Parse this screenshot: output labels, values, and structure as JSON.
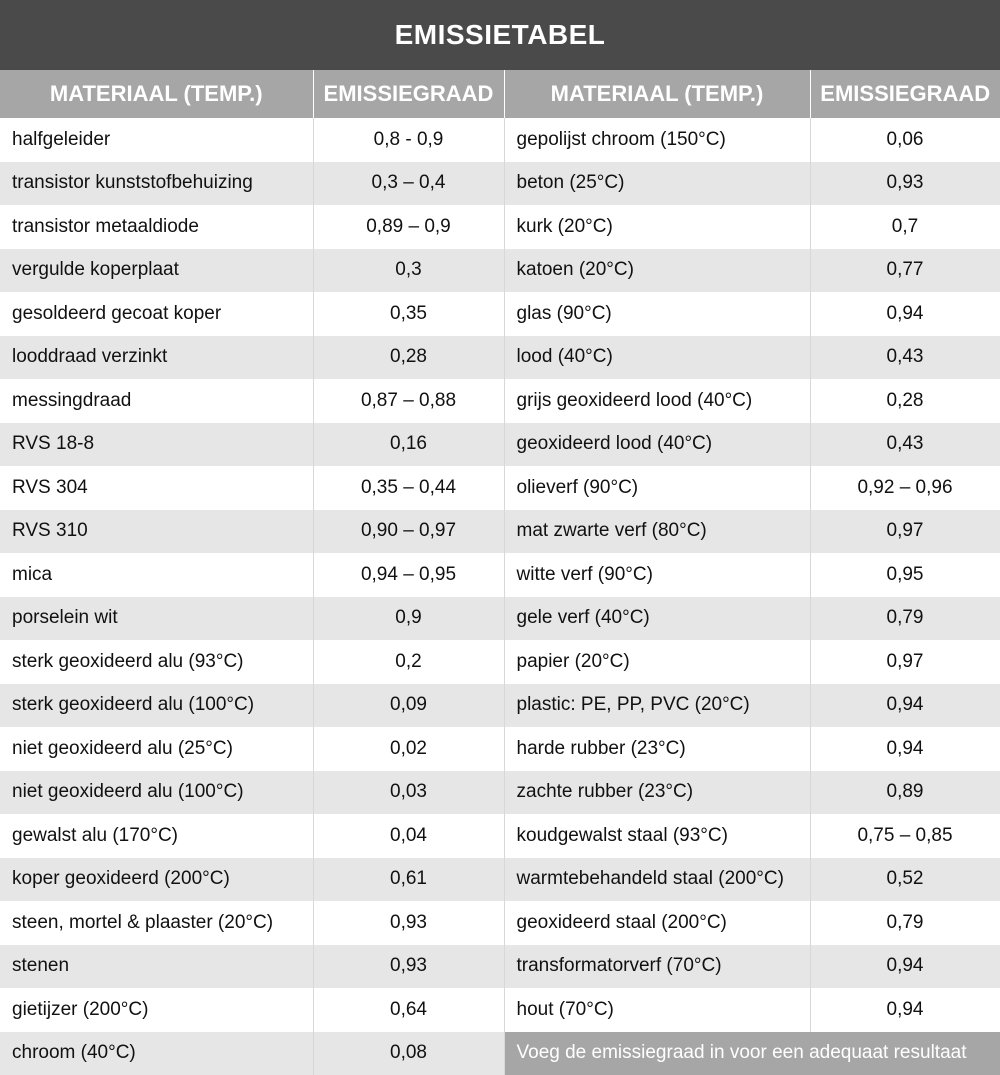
{
  "title": "EMISSIETABEL",
  "headers": [
    "MATERIAAL (TEMP.)",
    "EMISSIEGRAAD",
    "MATERIAAL (TEMP.)",
    "EMISSIEGRAAD"
  ],
  "rows": [
    {
      "m1": "halfgeleider",
      "e1": "0,8 - 0,9",
      "m2": "gepolijst chroom (150°C)",
      "e2": "0,06"
    },
    {
      "m1": "transistor kunststofbehuizing",
      "e1": "0,3 – 0,4",
      "m2": "beton (25°C)",
      "e2": "0,93"
    },
    {
      "m1": "transistor metaaldiode",
      "e1": "0,89 – 0,9",
      "m2": "kurk (20°C)",
      "e2": "0,7"
    },
    {
      "m1": "vergulde koperplaat",
      "e1": "0,3",
      "m2": "katoen (20°C)",
      "e2": "0,77"
    },
    {
      "m1": "gesoldeerd gecoat koper",
      "e1": "0,35",
      "m2": "glas (90°C)",
      "e2": "0,94"
    },
    {
      "m1": "looddraad verzinkt",
      "e1": "0,28",
      "m2": "lood (40°C)",
      "e2": "0,43"
    },
    {
      "m1": "messingdraad",
      "e1": "0,87 – 0,88",
      "m2": "grijs geoxideerd lood (40°C)",
      "e2": "0,28"
    },
    {
      "m1": "RVS 18-8",
      "e1": "0,16",
      "m2": "geoxideerd lood (40°C)",
      "e2": "0,43"
    },
    {
      "m1": "RVS 304",
      "e1": "0,35 – 0,44",
      "m2": "olieverf (90°C)",
      "e2": "0,92 – 0,96"
    },
    {
      "m1": "RVS 310",
      "e1": "0,90 – 0,97",
      "m2": "mat zwarte verf (80°C)",
      "e2": "0,97"
    },
    {
      "m1": "mica",
      "e1": "0,94 – 0,95",
      "m2": "witte verf (90°C)",
      "e2": "0,95"
    },
    {
      "m1": "porselein wit",
      "e1": "0,9",
      "m2": "gele verf (40°C)",
      "e2": "0,79"
    },
    {
      "m1": "sterk geoxideerd alu (93°C)",
      "e1": "0,2",
      "m2": "papier (20°C)",
      "e2": "0,97"
    },
    {
      "m1": "sterk geoxideerd alu (100°C)",
      "e1": "0,09",
      "m2": "plastic: PE, PP, PVC (20°C)",
      "e2": "0,94"
    },
    {
      "m1": "niet geoxideerd alu (25°C)",
      "e1": "0,02",
      "m2": "harde rubber (23°C)",
      "e2": "0,94"
    },
    {
      "m1": "niet geoxideerd alu (100°C)",
      "e1": "0,03",
      "m2": "zachte rubber (23°C)",
      "e2": "0,89"
    },
    {
      "m1": "gewalst alu (170°C)",
      "e1": "0,04",
      "m2": "koudgewalst staal (93°C)",
      "e2": "0,75 – 0,85"
    },
    {
      "m1": "koper geoxideerd (200°C)",
      "e1": "0,61",
      "m2": "warmtebehandeld staal (200°C)",
      "e2": "0,52"
    },
    {
      "m1": "steen, mortel & plaaster (20°C)",
      "e1": "0,93",
      "m2": "geoxideerd staal (200°C)",
      "e2": "0,79"
    },
    {
      "m1": "stenen",
      "e1": "0,93",
      "m2": "transformatorverf (70°C)",
      "e2": "0,94"
    },
    {
      "m1": "gietijzer (200°C)",
      "e1": "0,64",
      "m2": "hout (70°C)",
      "e2": "0,94"
    }
  ],
  "last_row": {
    "m1": "chroom (40°C)",
    "e1": "0,08"
  },
  "note": "Voeg de emissiegraad in voor een adequaat resultaat",
  "colors": {
    "title_bg": "#4a4a4a",
    "header_bg": "#a6a6a6",
    "stripe": "#e6e6e6"
  }
}
